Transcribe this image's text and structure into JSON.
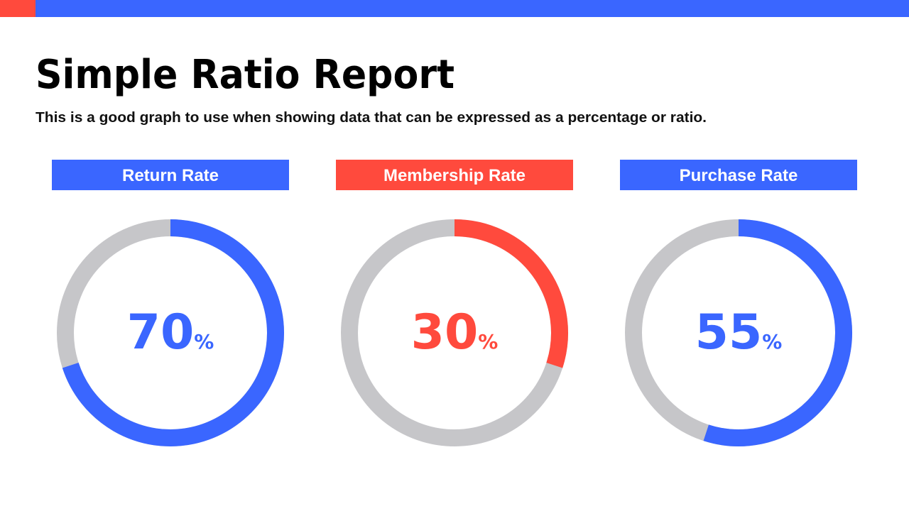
{
  "header": {
    "title": "Simple Ratio Report",
    "subtitle": "This is a good graph to use when showing data that can be expressed as a percentage or ratio."
  },
  "chart_data": [
    {
      "type": "donut",
      "title": "Return Rate",
      "values": [
        70
      ],
      "unit": "%",
      "color": "#3a66ff"
    },
    {
      "type": "donut",
      "title": "Membership Rate",
      "values": [
        30
      ],
      "unit": "%",
      "color": "#ff4a3d"
    },
    {
      "type": "donut",
      "title": "Purchase Rate",
      "values": [
        55
      ],
      "unit": "%",
      "color": "#3a66ff"
    }
  ]
}
